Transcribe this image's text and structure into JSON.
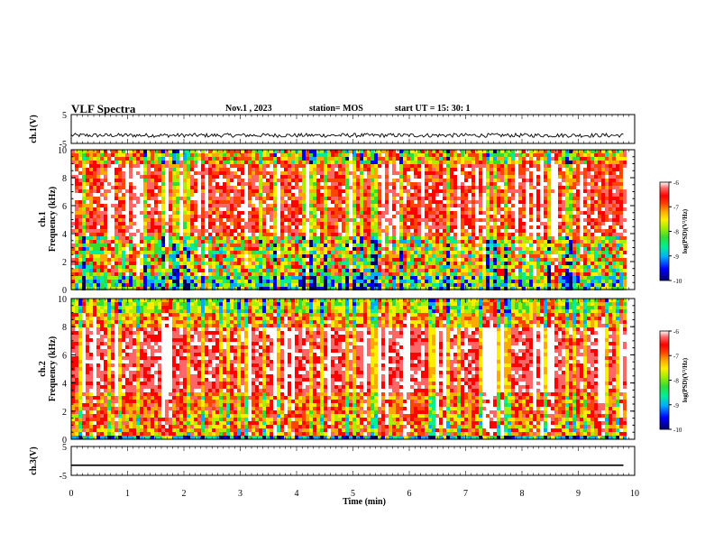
{
  "header": {
    "title": "VLF Spectra",
    "date": "Nov.1 , 2023",
    "station": "station= MOS",
    "start": "start UT = 15: 30: 1"
  },
  "chart_data": {
    "type": "heatmap",
    "x_axis": {
      "label": "Time (min)",
      "range": [
        0,
        10
      ],
      "ticks": [
        "0",
        "1",
        "2",
        "3",
        "4",
        "5",
        "6",
        "7",
        "8",
        "9",
        "10"
      ]
    },
    "panels": [
      {
        "id": "ch1-waveform",
        "type": "line",
        "ylabel": "ch.1(V)",
        "ylim": [
          -5,
          5
        ],
        "ytick_labels": [
          "5",
          "-5"
        ],
        "signal_level_V": -2.2,
        "signal": "noisy trace centred near -2 V, spanning 0 to 9.8 min"
      },
      {
        "id": "ch1-spectrogram",
        "type": "heatmap",
        "ylabel": "ch.1\nFrequency (kHz)",
        "ylim": [
          0,
          10
        ],
        "ytick_labels": [
          "0",
          "2",
          "4",
          "6",
          "8",
          "10"
        ],
        "data_extent_min": 9.8
      },
      {
        "id": "ch2-spectrogram",
        "type": "heatmap",
        "ylabel": "ch.2\nFrequency (kHz)",
        "ylim": [
          0,
          10
        ],
        "ytick_labels": [
          "0",
          "2",
          "4",
          "6",
          "8",
          "10"
        ],
        "data_extent_min": 9.8
      },
      {
        "id": "ch3-waveform",
        "type": "line",
        "ylabel": "ch.3(V)",
        "ylim": [
          -5,
          5
        ],
        "ytick_labels": [
          "5",
          "-5"
        ],
        "signal_level_V": -1.5,
        "signal": "flat line near -1.5 V, spanning 0 to 9.8 min"
      }
    ],
    "colorbar": {
      "label": "log(PSD)(V²/Hz)",
      "range": [
        -10,
        -6
      ],
      "tick_labels": [
        "-6",
        "-7",
        "-8",
        "-9",
        "-10"
      ],
      "colormap": [
        "#000066",
        "#0000ff",
        "#00aaff",
        "#00ee99",
        "#33dd33",
        "#aaee00",
        "#ffee00",
        "#ffaa00",
        "#ff4400",
        "#ff0000",
        "#ff6666",
        "#ffffff"
      ]
    }
  }
}
